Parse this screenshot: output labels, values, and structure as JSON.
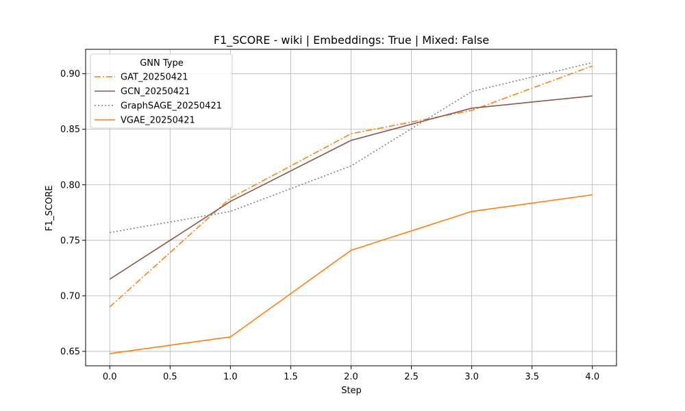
{
  "chart_data": {
    "type": "line",
    "title": "F1_SCORE - wiki | Embeddings: True | Mixed: False",
    "xlabel": "Step",
    "ylabel": "F1_SCORE",
    "xlim": [
      -0.2,
      4.2
    ],
    "ylim": [
      0.637,
      0.922
    ],
    "xticks": [
      "0.0",
      "0.5",
      "1.0",
      "1.5",
      "2.0",
      "2.5",
      "3.0",
      "3.5",
      "4.0"
    ],
    "yticks": [
      "0.65",
      "0.70",
      "0.75",
      "0.80",
      "0.85",
      "0.90"
    ],
    "grid": true,
    "legend": {
      "title": "GNN Type",
      "placement": "top-left"
    },
    "x": [
      0,
      1,
      2,
      3,
      4
    ],
    "series": [
      {
        "name": "GAT_20250421",
        "values": [
          0.69,
          0.788,
          0.846,
          0.867,
          0.907
        ],
        "color": "#ff7f0e",
        "style": "dashdot"
      },
      {
        "name": "GCN_20250421",
        "values": [
          0.715,
          0.785,
          0.84,
          0.869,
          0.88
        ],
        "color": "#8c564b",
        "style": "solid"
      },
      {
        "name": "GraphSAGE_20250421",
        "values": [
          0.757,
          0.776,
          0.817,
          0.884,
          0.91
        ],
        "color": "#7f7f7f",
        "style": "dotted"
      },
      {
        "name": "VGAE_20250421",
        "values": [
          0.648,
          0.663,
          0.741,
          0.776,
          0.791
        ],
        "color": "#ff7f0e",
        "style": "solid"
      }
    ]
  }
}
